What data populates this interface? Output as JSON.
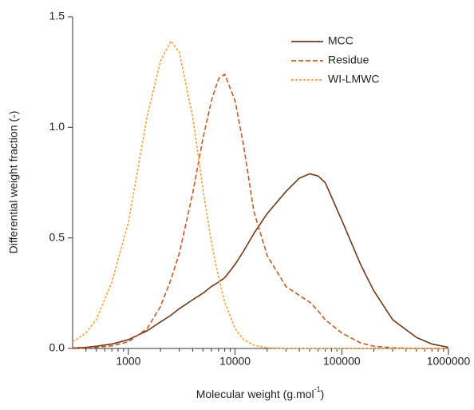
{
  "chart_data": {
    "type": "line",
    "ylabel": "Differential weight fraction (-)",
    "xlabel": [
      "Molecular weight (g.mol",
      "-1",
      ")"
    ],
    "xscale": "log",
    "xlim": [
      300,
      1000000
    ],
    "xticks": [
      1000,
      10000,
      100000,
      1000000
    ],
    "xminorticks": [
      400,
      500,
      600,
      700,
      800,
      900,
      2000,
      3000,
      4000,
      5000,
      6000,
      7000,
      8000,
      9000,
      20000,
      30000,
      40000,
      50000,
      60000,
      70000,
      80000,
      90000,
      200000,
      300000,
      400000,
      500000,
      600000,
      700000,
      800000,
      900000
    ],
    "ylim": [
      0,
      1.5
    ],
    "yticks": [
      {
        "value": 0,
        "label": "0.0"
      },
      0.5,
      {
        "value": 1,
        "label": "1.0"
      },
      1.5
    ],
    "legend": "upper right",
    "x": [
      300,
      400,
      500,
      700,
      1000,
      1500,
      2000,
      2500,
      3000,
      4000,
      5000,
      6000,
      7000,
      8000,
      10000,
      12000,
      15000,
      20000,
      30000,
      40000,
      50000,
      60000,
      70000,
      100000,
      150000,
      200000,
      300000,
      500000,
      700000,
      1000000
    ],
    "series": [
      {
        "name": "MCC",
        "color": "#6b3a1c",
        "style": "solid",
        "values": [
          0.002,
          0.005,
          0.01,
          0.02,
          0.04,
          0.08,
          0.12,
          0.15,
          0.18,
          0.22,
          0.25,
          0.28,
          0.3,
          0.32,
          0.38,
          0.44,
          0.52,
          0.61,
          0.71,
          0.77,
          0.79,
          0.78,
          0.75,
          0.58,
          0.38,
          0.26,
          0.13,
          0.05,
          0.02,
          0.005
        ]
      },
      {
        "name": "Residue",
        "color": "#c45a28",
        "style": "dashed",
        "values": [
          0,
          0.002,
          0.005,
          0.012,
          0.03,
          0.09,
          0.19,
          0.31,
          0.43,
          0.7,
          0.95,
          1.12,
          1.22,
          1.24,
          1.12,
          0.92,
          0.62,
          0.42,
          0.28,
          0.24,
          0.21,
          0.17,
          0.13,
          0.07,
          0.025,
          0.01,
          0.003,
          0,
          0,
          0
        ]
      },
      {
        "name": "WI-LMWC",
        "color": "#f2a23a",
        "style": "dotted",
        "values": [
          0.03,
          0.07,
          0.13,
          0.3,
          0.57,
          1.05,
          1.3,
          1.39,
          1.34,
          1.05,
          0.72,
          0.48,
          0.32,
          0.21,
          0.09,
          0.04,
          0.015,
          0.003,
          0,
          0,
          0,
          0,
          0,
          0,
          0,
          0,
          0,
          0,
          0,
          0
        ]
      }
    ]
  }
}
